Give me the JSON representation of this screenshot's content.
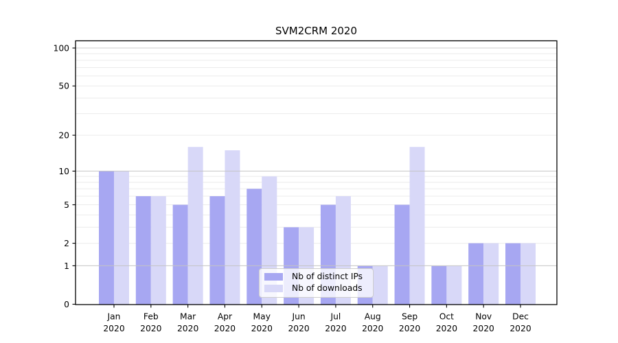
{
  "chart_data": {
    "type": "bar",
    "title": "SVM2CRM 2020",
    "categories": [
      "Jan 2020",
      "Feb 2020",
      "Mar 2020",
      "Apr 2020",
      "May 2020",
      "Jun 2020",
      "Jul 2020",
      "Aug 2020",
      "Sep 2020",
      "Oct 2020",
      "Nov 2020",
      "Dec 2020"
    ],
    "series": [
      {
        "name": "Nb of distinct IPs",
        "color": "#a7a7f2",
        "values": [
          10,
          6,
          5,
          6,
          7,
          3,
          5,
          1,
          5,
          1,
          2,
          2
        ]
      },
      {
        "name": "Nb of downloads",
        "color": "#d8d8f8",
        "values": [
          10,
          6,
          16,
          15,
          9,
          3,
          6,
          1,
          16,
          1,
          2,
          2
        ]
      }
    ],
    "xlabel": "",
    "ylabel": "",
    "yscale": "log1p",
    "ylim": [
      0,
      114
    ],
    "yticks": [
      0,
      1,
      2,
      5,
      10,
      20,
      50,
      100
    ],
    "grid": true,
    "grid_major_values": [
      1,
      10,
      100
    ],
    "grid_minor_values": [
      2,
      3,
      4,
      5,
      6,
      7,
      8,
      9,
      20,
      30,
      40,
      50,
      60,
      70,
      80,
      90
    ],
    "legend_position": "lower center",
    "colors": {
      "axis": "#000000",
      "text": "#000000",
      "grid_major": "#c3c3c3",
      "grid_minor": "#ebebeb",
      "legend_border": "#cccccc",
      "legend_background": "rgba(255,255,255,0.8)"
    }
  }
}
